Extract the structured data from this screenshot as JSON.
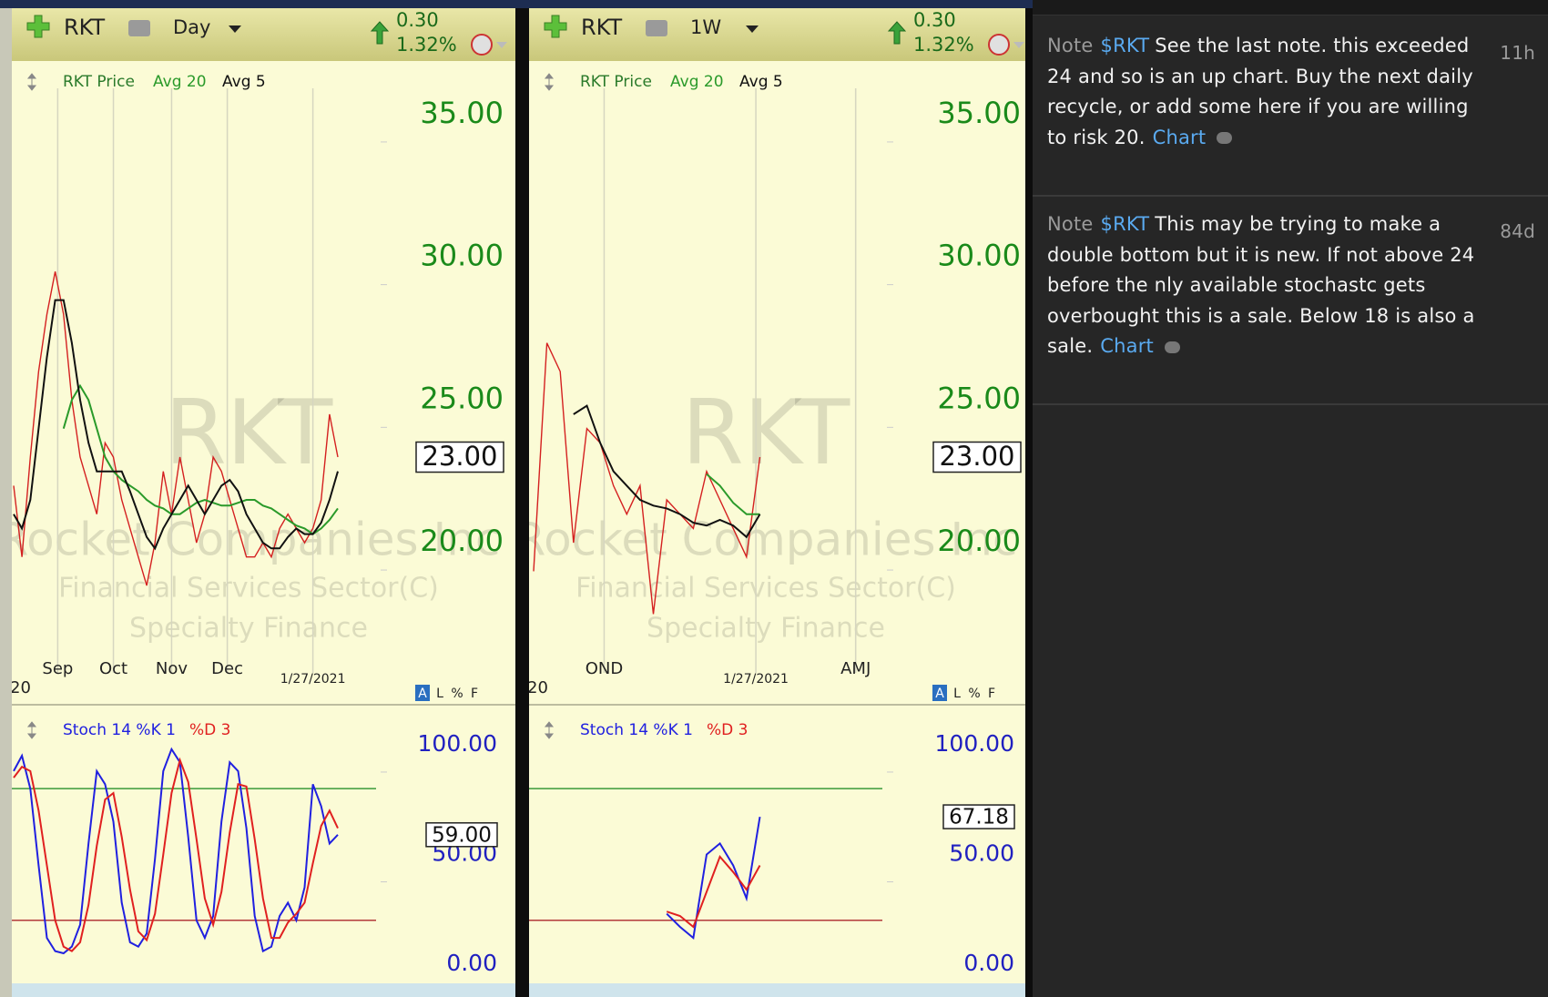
{
  "panels": [
    {
      "symbol": "RKT",
      "period": "Day",
      "change": "0.30",
      "change_pct": "1.32%",
      "watermark": {
        "symbol": "RKT",
        "company": "Rocket Companies Inc",
        "sector": "Financial Services Sector(C)",
        "industry": "Specialty Finance"
      },
      "price_chart": {
        "type": "line",
        "xlim": [
          0,
          39
        ],
        "ylim": [
          15.12,
          36.88
        ],
        "yticks": [
          {
            "value": 20,
            "label": "20.00"
          },
          {
            "value": 25,
            "label": "25.00"
          },
          {
            "value": 30,
            "label": "30.00"
          },
          {
            "value": 35,
            "label": "35.00"
          }
        ],
        "last_label": {
          "value": 23,
          "label": "23.00"
        },
        "xticks": [
          {
            "value": 5.3,
            "label": "Sep"
          },
          {
            "value": 12,
            "label": "Oct"
          },
          {
            "value": 19,
            "label": "Nov"
          },
          {
            "value": 25.7,
            "label": "Dec"
          }
        ],
        "date_label": {
          "value": 36,
          "label": "1/27/2021"
        },
        "year_label": "20",
        "scale_buttons": [
          "A",
          "L",
          "%",
          "F"
        ],
        "series": [
          {
            "name": "RKT Price",
            "color": "#d42020",
            "values": [
              22,
              19.5,
              23,
              26,
              28,
              29.5,
              28,
              25,
              23,
              22,
              21,
              23.5,
              23,
              21.5,
              20.5,
              19.5,
              18.5,
              20,
              22.5,
              21,
              23,
              21.5,
              20,
              21,
              23,
              22.5,
              21.5,
              20.5,
              19.5,
              19.5,
              20,
              19.5,
              20.5,
              21,
              20.5,
              20,
              20.5,
              21.5,
              24.5,
              23
            ]
          },
          {
            "name": "Avg 20",
            "color": "#2a9a2a",
            "values": [
              null,
              null,
              null,
              null,
              null,
              null,
              24,
              25,
              25.5,
              25,
              24,
              23,
              22.5,
              22.2,
              22,
              21.8,
              21.5,
              21.3,
              21.2,
              21,
              21,
              21.2,
              21.4,
              21.5,
              21.4,
              21.3,
              21.3,
              21.4,
              21.5,
              21.5,
              21.3,
              21.2,
              21,
              20.8,
              20.6,
              20.5,
              20.3,
              20.5,
              20.8,
              21.2
            ]
          },
          {
            "name": "Avg 5",
            "color": "#111111",
            "values": [
              21,
              20.5,
              21.5,
              24,
              26.5,
              28.5,
              28.5,
              27,
              25,
              23.5,
              22.5,
              22.5,
              22.5,
              22.5,
              21.8,
              21,
              20.2,
              19.8,
              20.5,
              21,
              21.5,
              22,
              21.5,
              21,
              21.5,
              22,
              22.2,
              21.8,
              21,
              20.5,
              20,
              19.8,
              19.8,
              20.2,
              20.5,
              20.3,
              20.3,
              20.7,
              21.5,
              22.5
            ]
          }
        ]
      },
      "stoch_chart": {
        "type": "line",
        "xlim": [
          0,
          39
        ],
        "ylim": [
          -8.7,
          117.4
        ],
        "yticks": [
          {
            "value": 0,
            "label": "0.00"
          },
          {
            "value": 50,
            "label": "50.00"
          },
          {
            "value": 100,
            "label": "100.00"
          }
        ],
        "last_label": {
          "value": 59,
          "label": "59.00"
        },
        "levels": [
          80,
          20
        ],
        "series": [
          {
            "name": "Stoch 14 %K 1",
            "color": "#2020e0",
            "values": [
              88,
              95,
              80,
              45,
              12,
              6,
              5,
              8,
              18,
              55,
              88,
              82,
              65,
              28,
              10,
              8,
              14,
              48,
              88,
              98,
              92,
              58,
              20,
              12,
              22,
              65,
              92,
              88,
              62,
              22,
              6,
              8,
              22,
              28,
              20,
              35,
              82,
              72,
              55,
              59
            ]
          },
          {
            "name": "%D 3",
            "color": "#e02020",
            "values": [
              85,
              90,
              88,
              70,
              45,
              20,
              8,
              6,
              10,
              27,
              54,
              75,
              78,
              58,
              34,
              15,
              11,
              23,
              50,
              78,
              93,
              83,
              57,
              30,
              18,
              33,
              60,
              82,
              81,
              57,
              30,
              12,
              12,
              19,
              23,
              28,
              46,
              63,
              70,
              62
            ]
          }
        ]
      }
    },
    {
      "symbol": "RKT",
      "period": "1W",
      "change": "0.30",
      "change_pct": "1.32%",
      "watermark": {
        "symbol": "RKT",
        "company": "Rocket Companies Inc",
        "sector": "Financial Services Sector(C)",
        "industry": "Specialty Finance"
      },
      "price_chart": {
        "type": "line",
        "xlim": [
          0,
          26
        ],
        "ylim": [
          15.12,
          36.88
        ],
        "yticks": [
          {
            "value": 20,
            "label": "20.00"
          },
          {
            "value": 25,
            "label": "25.00"
          },
          {
            "value": 30,
            "label": "30.00"
          },
          {
            "value": 35,
            "label": "35.00"
          }
        ],
        "last_label": {
          "value": 23,
          "label": "23.00"
        },
        "xticks": [
          {
            "value": 5.3,
            "label": "OND"
          },
          {
            "value": 24.2,
            "label": "AMJ"
          }
        ],
        "date_label": {
          "value": 16.7,
          "label": "1/27/2021"
        },
        "year_label": "20",
        "scale_buttons": [
          "A",
          "L",
          "%",
          "F"
        ],
        "series": [
          {
            "name": "RKT Price",
            "color": "#d42020",
            "values": [
              19,
              27,
              26,
              20,
              24,
              23.5,
              22,
              21,
              22,
              17.5,
              21.5,
              21,
              20.5,
              22.5,
              21.5,
              20.5,
              19.5,
              23
            ]
          },
          {
            "name": "Avg 20",
            "color": "#2a9a2a",
            "values": [
              null,
              null,
              null,
              null,
              null,
              null,
              null,
              null,
              null,
              null,
              null,
              null,
              null,
              22.4,
              22,
              21.4,
              21,
              21
            ]
          },
          {
            "name": "Avg 5",
            "color": "#111111",
            "values": [
              null,
              null,
              null,
              24.5,
              24.8,
              23.5,
              22.5,
              22,
              21.5,
              21.3,
              21.2,
              21,
              20.7,
              20.6,
              20.8,
              20.6,
              20.2,
              21
            ]
          }
        ]
      },
      "stoch_chart": {
        "type": "line",
        "xlim": [
          0,
          26
        ],
        "ylim": [
          -8.7,
          117.4
        ],
        "yticks": [
          {
            "value": 0,
            "label": "0.00"
          },
          {
            "value": 50,
            "label": "50.00"
          },
          {
            "value": 100,
            "label": "100.00"
          }
        ],
        "last_label": {
          "value": 67.18,
          "label": "67.18"
        },
        "levels": [
          80,
          20
        ],
        "series": [
          {
            "name": "Stoch 14 %K 1",
            "color": "#2020e0",
            "values": [
              null,
              null,
              null,
              null,
              null,
              null,
              null,
              null,
              null,
              null,
              23,
              17,
              12,
              50,
              55,
              45,
              30,
              67.18
            ]
          },
          {
            "name": "%D 3",
            "color": "#e02020",
            "values": [
              null,
              null,
              null,
              null,
              null,
              null,
              null,
              null,
              null,
              null,
              24,
              22,
              17,
              33,
              49,
              42,
              34,
              45
            ]
          }
        ]
      }
    }
  ],
  "notes": [
    {
      "label": "Note",
      "symbol": "$RKT",
      "text": "See the last note. this exceeded 24 and so is an up chart. Buy the next daily recycle, or add some here if you are willing to risk 20.",
      "link": "Chart",
      "age": "11h"
    },
    {
      "label": "Note",
      "symbol": "$RKT",
      "text": "This may be trying to make a double bottom but it is new. If not above 24 before the nly available stochastc gets overbought this is a sale. Below 18 is also a sale.",
      "link": "Chart",
      "age": "84d"
    }
  ]
}
